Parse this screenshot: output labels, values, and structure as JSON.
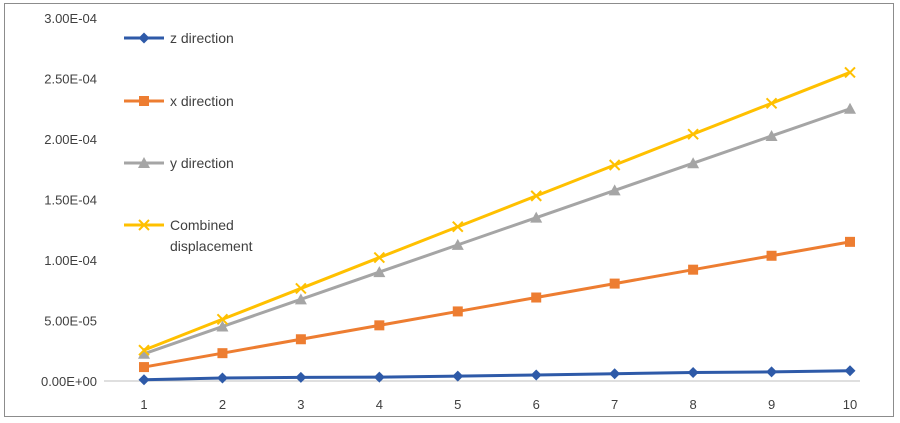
{
  "chart_data": {
    "type": "line",
    "title": "",
    "xlabel": "",
    "ylabel": "",
    "categories": [
      "1",
      "2",
      "3",
      "4",
      "5",
      "6",
      "7",
      "8",
      "9",
      "10"
    ],
    "y_tick_labels": [
      "0.00E+00",
      "5.00E-05",
      "1.00E-04",
      "1.50E-04",
      "2.00E-04",
      "2.50E-04",
      "3.00E-04"
    ],
    "ylim": [
      0,
      0.0003
    ],
    "grid": false,
    "legend_position": "left",
    "series": [
      {
        "name": "z direction",
        "color": "#2e5aa8",
        "marker": "diamond",
        "values": [
          1e-06,
          2.5e-06,
          3e-06,
          3.2e-06,
          4e-06,
          5e-06,
          6e-06,
          7e-06,
          7.5e-06,
          8.5e-06
        ]
      },
      {
        "name": "x direction",
        "color": "#ed7d31",
        "marker": "square",
        "values": [
          1.15e-05,
          2.3e-05,
          3.45e-05,
          4.6e-05,
          5.75e-05,
          6.9e-05,
          8.05e-05,
          9.2e-05,
          0.0001035,
          0.000115
        ]
      },
      {
        "name": "y direction",
        "color": "#a5a5a5",
        "marker": "triangle",
        "values": [
          2.25e-05,
          4.5e-05,
          6.75e-05,
          9e-05,
          0.0001125,
          0.000135,
          0.0001575,
          0.00018,
          0.0002025,
          0.000225
        ]
      },
      {
        "name": "Combined displacement",
        "legend_lines": [
          "Combined",
          "displacement"
        ],
        "color": "#ffc000",
        "marker": "x",
        "values": [
          2.55e-05,
          5.1e-05,
          7.65e-05,
          0.000102,
          0.0001275,
          0.000153,
          0.0001785,
          0.000204,
          0.0002295,
          0.000255
        ]
      }
    ]
  }
}
